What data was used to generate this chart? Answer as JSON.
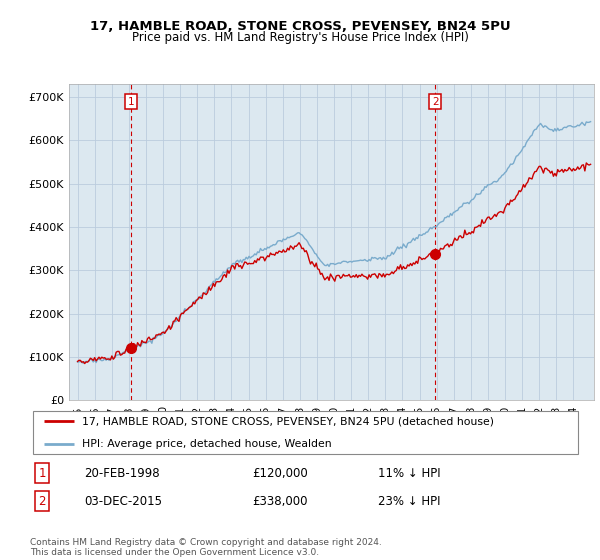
{
  "title": "17, HAMBLE ROAD, STONE CROSS, PEVENSEY, BN24 5PU",
  "subtitle": "Price paid vs. HM Land Registry's House Price Index (HPI)",
  "legend_line1": "17, HAMBLE ROAD, STONE CROSS, PEVENSEY, BN24 5PU (detached house)",
  "legend_line2": "HPI: Average price, detached house, Wealden",
  "footnote": "Contains HM Land Registry data © Crown copyright and database right 2024.\nThis data is licensed under the Open Government Licence v3.0.",
  "marker1_date": "20-FEB-1998",
  "marker1_price": "£120,000",
  "marker1_hpi": "11% ↓ HPI",
  "marker1_x": 1998.13,
  "marker1_y": 120000,
  "marker2_date": "03-DEC-2015",
  "marker2_price": "£338,000",
  "marker2_hpi": "23% ↓ HPI",
  "marker2_x": 2015.92,
  "marker2_y": 338000,
  "sale_color": "#cc0000",
  "hpi_color": "#7aabcc",
  "marker_box_color": "#cc0000",
  "vline_color": "#cc0000",
  "grid_color": "#bbccdd",
  "chart_bg": "#dce8f0",
  "bg_color": "#ffffff",
  "ylim": [
    0,
    730000
  ],
  "xlim": [
    1994.5,
    2025.2
  ],
  "yticks": [
    0,
    100000,
    200000,
    300000,
    400000,
    500000,
    600000,
    700000
  ],
  "ytick_labels": [
    "£0",
    "£100K",
    "£200K",
    "£300K",
    "£400K",
    "£500K",
    "£600K",
    "£700K"
  ],
  "xticks": [
    1995,
    1996,
    1997,
    1998,
    1999,
    2000,
    2001,
    2002,
    2003,
    2004,
    2005,
    2006,
    2007,
    2008,
    2009,
    2010,
    2011,
    2012,
    2013,
    2014,
    2015,
    2016,
    2017,
    2018,
    2019,
    2020,
    2021,
    2022,
    2023,
    2024
  ]
}
